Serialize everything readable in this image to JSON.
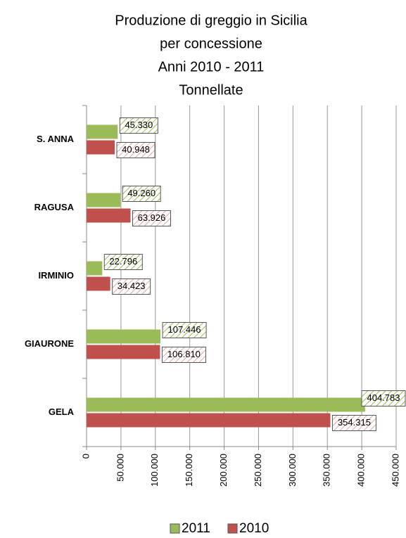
{
  "chart_data": {
    "type": "barh",
    "title": [
      "Produzione di greggio in Sicilia",
      "per concessione",
      "Anni 2010  - 2011",
      "Tonnellate"
    ],
    "categories": [
      "S. ANNA",
      "RAGUSA",
      "IRMINIO",
      "GIAURONE",
      "GELA"
    ],
    "series": [
      {
        "name": "2011",
        "color": "#9bbb59",
        "values": [
          45330,
          49260,
          22796,
          107446,
          404783
        ],
        "value_labels": [
          "45.330",
          "49.260",
          "22.796",
          "107.446",
          "404.783"
        ]
      },
      {
        "name": "2010",
        "color": "#c0504d",
        "values": [
          40948,
          63926,
          34423,
          106810,
          354315
        ],
        "value_labels": [
          "40.948",
          "63.926",
          "34.423",
          "106.810",
          "354.315"
        ]
      }
    ],
    "xlim": [
      0,
      450000
    ],
    "xticks": [
      0,
      {
        "value": 50000,
        "label": "50.000"
      },
      {
        "value": 100000,
        "label": "100.000"
      },
      {
        "value": 150000,
        "label": "150.000"
      },
      {
        "value": 200000,
        "label": "200.000"
      },
      {
        "value": 250000,
        "label": "250.000"
      },
      {
        "value": 300000,
        "label": "300.000"
      },
      {
        "value": 350000,
        "label": "350.000"
      },
      {
        "value": 400000,
        "label": "400.000"
      },
      {
        "value": 450000,
        "label": "450.000"
      }
    ],
    "grid": true,
    "legend": "bottom"
  }
}
